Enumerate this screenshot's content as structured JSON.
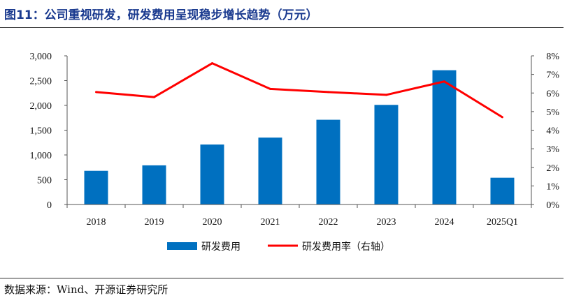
{
  "header": {
    "title": "图11：公司重视研发，研发费用呈现稳步增长趋势（万元）"
  },
  "footer": {
    "source": "数据来源：Wind、开源证券研究所"
  },
  "colors": {
    "bar": "#0070c0",
    "line": "#ff0000",
    "title": "#1a3a8f"
  },
  "chart_data": {
    "type": "bar",
    "categories": [
      "2018",
      "2019",
      "2020",
      "2021",
      "2022",
      "2023",
      "2024",
      "2025Q1"
    ],
    "series": [
      {
        "name": "研发费用",
        "type": "bar",
        "axis": "left",
        "values": [
          680,
          790,
          1210,
          1350,
          1710,
          2010,
          2710,
          540
        ]
      },
      {
        "name": "研发费用率（右轴）",
        "type": "line",
        "axis": "right",
        "values": [
          6.05,
          5.78,
          7.6,
          6.22,
          6.05,
          5.9,
          6.62,
          4.7
        ]
      }
    ],
    "y_left": {
      "min": 0,
      "max": 3000,
      "ticks": [
        {
          "v": 0,
          "label": "0"
        },
        {
          "v": 500,
          "label": "500"
        },
        {
          "v": 1000,
          "label": "1,000"
        },
        {
          "v": 1500,
          "label": "1,500"
        },
        {
          "v": 2000,
          "label": "2,000"
        },
        {
          "v": 2500,
          "label": "2,500"
        },
        {
          "v": 3000,
          "label": "3,000"
        }
      ]
    },
    "y_right": {
      "min": 0,
      "max": 8,
      "ticks": [
        {
          "v": 0,
          "label": "0%"
        },
        {
          "v": 1,
          "label": "1%"
        },
        {
          "v": 2,
          "label": "2%"
        },
        {
          "v": 3,
          "label": "3%"
        },
        {
          "v": 4,
          "label": "4%"
        },
        {
          "v": 5,
          "label": "5%"
        },
        {
          "v": 6,
          "label": "6%"
        },
        {
          "v": 7,
          "label": "7%"
        },
        {
          "v": 8,
          "label": "8%"
        }
      ]
    },
    "grid": false,
    "legend_position": "bottom"
  }
}
